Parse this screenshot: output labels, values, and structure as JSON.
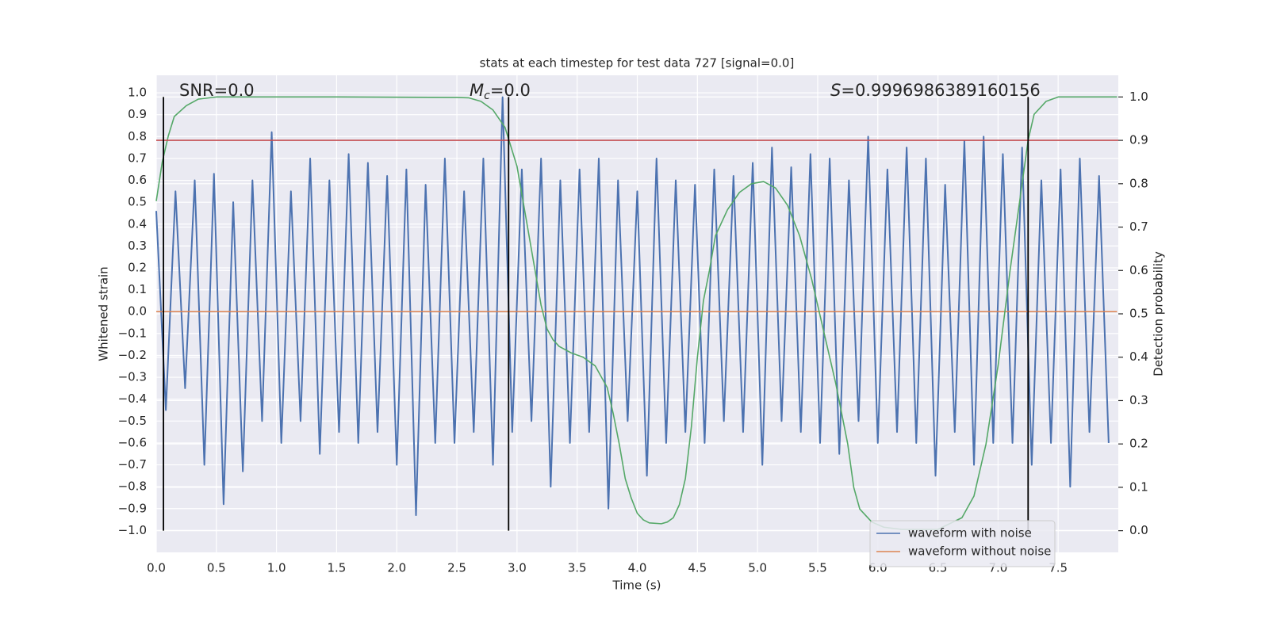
{
  "chart_data": {
    "type": "line",
    "title": "stats at each timestep for test data 727 [signal=0.0]",
    "xlabel": "Time (s)",
    "ylabel": "Whitened strain",
    "y2label": "Detection probability",
    "xlim": [
      0,
      8.0
    ],
    "ylim": [
      -1.1,
      1.08
    ],
    "y2lim": [
      -0.05,
      1.05
    ],
    "xticks": [
      {
        "value": 0,
        "label": "0.0"
      },
      0.5,
      {
        "value": 1,
        "label": "1.0"
      },
      1.5,
      {
        "value": 2,
        "label": "2.0"
      },
      2.5,
      {
        "value": 3,
        "label": "3.0"
      },
      3.5,
      {
        "value": 4,
        "label": "4.0"
      },
      4.5,
      {
        "value": 5,
        "label": "5.0"
      },
      5.5,
      {
        "value": 6,
        "label": "6.0"
      },
      6.5,
      {
        "value": 7,
        "label": "7.0"
      },
      7.5
    ],
    "yticks": [
      {
        "value": -1,
        "label": "−1.0"
      },
      {
        "value": -0.9,
        "label": "−0.9"
      },
      {
        "value": -0.8,
        "label": "−0.8"
      },
      {
        "value": -0.7,
        "label": "−0.7"
      },
      {
        "value": -0.6,
        "label": "−0.6"
      },
      {
        "value": -0.5,
        "label": "−0.5"
      },
      {
        "value": -0.4,
        "label": "−0.4"
      },
      {
        "value": -0.3,
        "label": "−0.3"
      },
      {
        "value": -0.2,
        "label": "−0.2"
      },
      {
        "value": -0.1,
        "label": "−0.1"
      },
      {
        "value": 0,
        "label": "0.0"
      },
      0.1,
      0.2,
      0.3,
      0.4,
      0.5,
      0.6,
      0.7,
      0.8,
      0.9,
      {
        "value": 1,
        "label": "1.0"
      }
    ],
    "y2ticks": [
      {
        "value": 0,
        "label": "0.0"
      },
      0.1,
      0.2,
      0.3,
      0.4,
      0.5,
      0.6,
      0.7,
      0.8,
      0.9,
      {
        "value": 1,
        "label": "1.0"
      }
    ],
    "grid": true,
    "legend": "lower right",
    "annotations": [
      {
        "text": "SNR=0.0"
      },
      {
        "symbol": "M",
        "subscript": "c",
        "text": "=0.0"
      },
      {
        "symbol": "S",
        "text": "=0.9996986389160156"
      }
    ],
    "series": [
      {
        "name": "waveform with noise",
        "color": "#4c72b0",
        "x": [
          0,
          0.08,
          0.16,
          0.24,
          0.32,
          0.4,
          0.48,
          0.56,
          0.64,
          0.72,
          0.8,
          0.88,
          0.96,
          1.04,
          1.12,
          1.2,
          1.28,
          1.36,
          1.44,
          1.52,
          1.6,
          1.68,
          1.76,
          1.84,
          1.92,
          2,
          2.08,
          2.16,
          2.24,
          2.32,
          2.4,
          2.48,
          2.56,
          2.64,
          2.72,
          2.8,
          2.88,
          2.96,
          3.04,
          3.12,
          3.2,
          3.28,
          3.36,
          3.44,
          3.52,
          3.6,
          3.68,
          3.76,
          3.84,
          3.92,
          4,
          4.08,
          4.16,
          4.24,
          4.32,
          4.4,
          4.48,
          4.56,
          4.64,
          4.72,
          4.8,
          4.88,
          4.96,
          5.04,
          5.12,
          5.2,
          5.28,
          5.36,
          5.44,
          5.52,
          5.6,
          5.68,
          5.76,
          5.84,
          5.92,
          6,
          6.08,
          6.16,
          6.24,
          6.32,
          6.4,
          6.48,
          6.56,
          6.64,
          6.72,
          6.8,
          6.88,
          6.96,
          7.04,
          7.12,
          7.2,
          7.28,
          7.36,
          7.44,
          7.52,
          7.6,
          7.68,
          7.76,
          7.84,
          7.92
        ],
        "values": [
          0.46,
          -0.45,
          0.55,
          -0.35,
          0.6,
          -0.7,
          0.63,
          -0.88,
          0.5,
          -0.73,
          0.6,
          -0.5,
          0.82,
          -0.6,
          0.55,
          -0.5,
          0.7,
          -0.65,
          0.6,
          -0.55,
          0.72,
          -0.6,
          0.68,
          -0.55,
          0.62,
          -0.7,
          0.65,
          -0.93,
          0.58,
          -0.6,
          0.7,
          -0.6,
          0.55,
          -0.55,
          0.7,
          -0.7,
          0.98,
          -0.55,
          0.65,
          -0.5,
          0.7,
          -0.8,
          0.6,
          -0.6,
          0.65,
          -0.55,
          0.7,
          -0.9,
          0.6,
          -0.5,
          0.55,
          -0.75,
          0.7,
          -0.6,
          0.6,
          -0.55,
          0.58,
          -0.6,
          0.65,
          -0.5,
          0.62,
          -0.55,
          0.68,
          -0.7,
          0.75,
          -0.5,
          0.66,
          -0.55,
          0.72,
          -0.6,
          0.7,
          -0.65,
          0.6,
          -0.5,
          0.8,
          -0.6,
          0.65,
          -0.55,
          0.75,
          -0.6,
          0.7,
          -0.75,
          0.58,
          -0.55,
          0.78,
          -0.7,
          0.8,
          -0.6,
          0.72,
          -0.6,
          0.75,
          -0.7,
          0.6,
          -0.6,
          0.65,
          -0.8,
          0.7,
          -0.55,
          0.62,
          -0.6
        ]
      },
      {
        "name": "waveform without noise",
        "color": "#dd8452",
        "x": [
          0,
          7.99
        ],
        "values": [
          0,
          0
        ]
      },
      {
        "color": "#55a868",
        "axis": "y2",
        "x": [
          0,
          0.05,
          0.1,
          0.15,
          0.25,
          0.35,
          0.5,
          1.5,
          2.5,
          2.6,
          2.7,
          2.8,
          2.9,
          3.0,
          3.05,
          3.1,
          3.15,
          3.2,
          3.25,
          3.3,
          3.35,
          3.45,
          3.55,
          3.65,
          3.75,
          3.8,
          3.85,
          3.9,
          3.95,
          4.0,
          4.05,
          4.1,
          4.2,
          4.25,
          4.3,
          4.35,
          4.4,
          4.45,
          4.5,
          4.55,
          4.6,
          4.65,
          4.75,
          4.85,
          4.95,
          5.05,
          5.15,
          5.25,
          5.35,
          5.45,
          5.55,
          5.65,
          5.75,
          5.8,
          5.85,
          5.95,
          6.05,
          6.2,
          6.5,
          6.7,
          6.8,
          6.9,
          7.0,
          7.1,
          7.2,
          7.25,
          7.3,
          7.4,
          7.5,
          7.99
        ],
        "values": [
          0.76,
          0.85,
          0.91,
          0.955,
          0.98,
          0.995,
          1.0,
          1.0,
          0.999,
          0.998,
          0.99,
          0.97,
          0.93,
          0.84,
          0.76,
          0.68,
          0.6,
          0.52,
          0.465,
          0.44,
          0.425,
          0.41,
          0.4,
          0.38,
          0.33,
          0.27,
          0.2,
          0.12,
          0.075,
          0.04,
          0.025,
          0.018,
          0.016,
          0.02,
          0.03,
          0.06,
          0.12,
          0.24,
          0.4,
          0.53,
          0.6,
          0.68,
          0.74,
          0.78,
          0.8,
          0.805,
          0.79,
          0.75,
          0.68,
          0.58,
          0.46,
          0.34,
          0.2,
          0.1,
          0.05,
          0.02,
          0.008,
          0.003,
          0.003,
          0.03,
          0.08,
          0.2,
          0.38,
          0.6,
          0.8,
          0.9,
          0.96,
          0.99,
          1.0,
          1.0
        ]
      }
    ],
    "hlines": [
      {
        "value": 0.9,
        "axis": "y2",
        "color": "#c44e52"
      }
    ],
    "vlines": {
      "x": [
        0.06,
        2.93,
        7.25
      ],
      "span": [
        0,
        1
      ],
      "axis": "y2",
      "color": "#000000"
    }
  }
}
